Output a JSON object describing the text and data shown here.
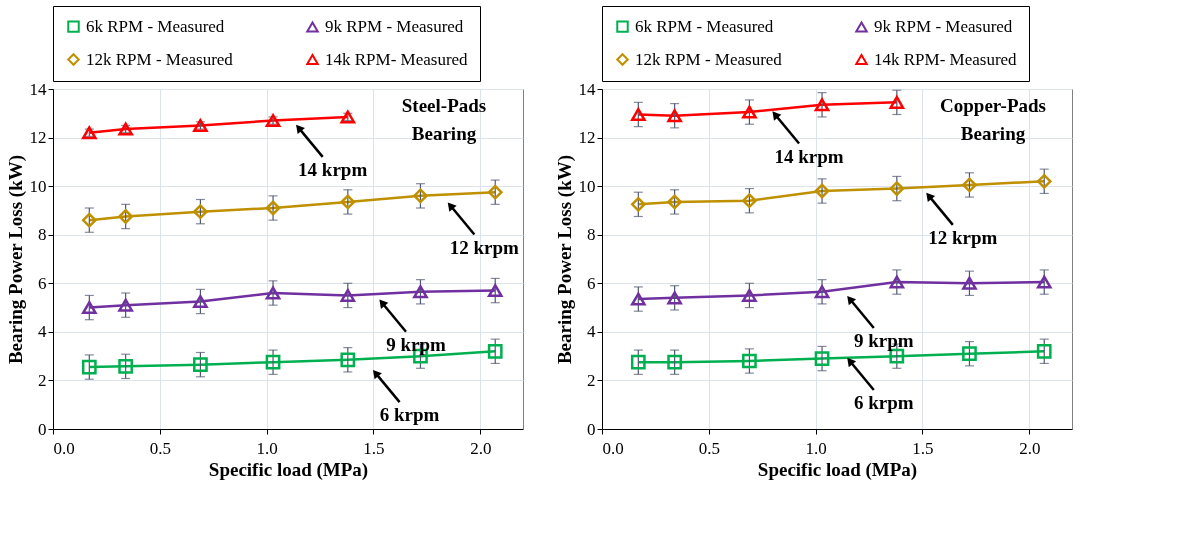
{
  "chart_data": [
    {
      "type": "line",
      "title": "Steel-Pads Bearing",
      "xlabel": "Specific load (MPa)",
      "ylabel": "Bearing Power Loss (kW)",
      "xlim": [
        0,
        2.2
      ],
      "ylim": [
        0,
        14
      ],
      "xticks": [
        {
          "value": 0,
          "label": "0.0"
        },
        {
          "value": 0.5,
          "label": "0.5"
        },
        {
          "value": 1,
          "label": "1.0"
        },
        {
          "value": 1.5,
          "label": "1.5"
        },
        {
          "value": 2,
          "label": "2.0"
        }
      ],
      "yticks": [
        0,
        2,
        4,
        6,
        8,
        10,
        12,
        14
      ],
      "grid": true,
      "legend": "top",
      "line_style": "solid",
      "x": [
        0.17,
        0.34,
        0.69,
        1.03,
        1.38,
        1.72,
        2.07
      ],
      "series": [
        {
          "name": "6k RPM - Measured",
          "color": "#00b050",
          "marker": "square",
          "values": [
            2.55,
            2.58,
            2.65,
            2.75,
            2.85,
            3.0,
            3.2
          ],
          "errors": [
            0.5,
            0.5,
            0.5,
            0.5,
            0.5,
            0.5,
            0.5
          ]
        },
        {
          "name": "9k RPM - Measured",
          "color": "#7030a0",
          "marker": "triangle",
          "values": [
            5.0,
            5.1,
            5.25,
            5.6,
            5.5,
            5.65,
            5.7
          ],
          "errors": [
            0.5,
            0.5,
            0.5,
            0.5,
            0.5,
            0.5,
            0.5
          ]
        },
        {
          "name": "12k RPM - Measured",
          "color": "#bf9000",
          "marker": "diamond",
          "values": [
            8.6,
            8.75,
            8.95,
            9.1,
            9.35,
            9.6,
            9.75
          ],
          "errors": [
            0.5,
            0.5,
            0.5,
            0.5,
            0.5,
            0.5,
            0.5
          ]
        },
        {
          "name": "14k RPM- Measured",
          "color": "#ff0000",
          "marker": "triangle",
          "x": [
            0.17,
            0.34,
            0.69,
            1.03,
            1.38
          ],
          "values": [
            12.2,
            12.35,
            12.5,
            12.7,
            12.85
          ],
          "errors": [
            0.15,
            0.15,
            0.15,
            0.15,
            0.15
          ]
        }
      ],
      "annotations": [
        {
          "text": "14 krpm",
          "x": 1.15,
          "y": 12.4
        },
        {
          "text": "12 krpm",
          "x": 1.86,
          "y": 9.2
        },
        {
          "text": "9 krpm",
          "x": 1.54,
          "y": 5.2
        },
        {
          "text": "6 krpm",
          "x": 1.51,
          "y": 2.3
        }
      ]
    },
    {
      "type": "line",
      "title": "Copper-Pads Bearing",
      "xlabel": "Specific load (MPa)",
      "ylabel": "Bearing Power Loss (kW)",
      "xlim": [
        0,
        2.2
      ],
      "ylim": [
        0,
        14
      ],
      "xticks": [
        {
          "value": 0,
          "label": "0.0"
        },
        {
          "value": 0.5,
          "label": "0.5"
        },
        {
          "value": 1,
          "label": "1.0"
        },
        {
          "value": 1.5,
          "label": "1.5"
        },
        {
          "value": 2,
          "label": "2.0"
        }
      ],
      "yticks": [
        0,
        2,
        4,
        6,
        8,
        10,
        12,
        14
      ],
      "grid": true,
      "legend": "top",
      "line_style": "solid",
      "x": [
        0.17,
        0.34,
        0.69,
        1.03,
        1.38,
        1.72,
        2.07
      ],
      "series": [
        {
          "name": "6k RPM - Measured",
          "color": "#00b050",
          "marker": "square",
          "values": [
            2.75,
            2.75,
            2.8,
            2.9,
            3.0,
            3.1,
            3.2
          ],
          "errors": [
            0.5,
            0.5,
            0.5,
            0.5,
            0.5,
            0.5,
            0.5
          ]
        },
        {
          "name": "9k RPM - Measured",
          "color": "#7030a0",
          "marker": "triangle",
          "values": [
            5.35,
            5.4,
            5.5,
            5.65,
            6.05,
            6.0,
            6.05
          ],
          "errors": [
            0.5,
            0.5,
            0.5,
            0.5,
            0.5,
            0.5,
            0.5
          ]
        },
        {
          "name": "12k RPM - Measured",
          "color": "#bf9000",
          "marker": "diamond",
          "values": [
            9.25,
            9.35,
            9.4,
            9.8,
            9.9,
            10.05,
            10.2
          ],
          "errors": [
            0.5,
            0.5,
            0.5,
            0.5,
            0.5,
            0.5,
            0.5
          ]
        },
        {
          "name": "14k RPM- Measured",
          "color": "#ff0000",
          "marker": "triangle",
          "x": [
            0.17,
            0.34,
            0.69,
            1.03,
            1.38
          ],
          "values": [
            12.95,
            12.9,
            13.05,
            13.35,
            13.45
          ],
          "errors": [
            0.5,
            0.5,
            0.5,
            0.5,
            0.5
          ]
        }
      ],
      "annotations": [
        {
          "text": "14 krpm",
          "x": 0.81,
          "y": 12.95
        },
        {
          "text": "12 krpm",
          "x": 1.53,
          "y": 9.6
        },
        {
          "text": "9 krpm",
          "x": 1.16,
          "y": 5.35
        },
        {
          "text": "6 krpm",
          "x": 1.16,
          "y": 2.8
        }
      ]
    }
  ]
}
